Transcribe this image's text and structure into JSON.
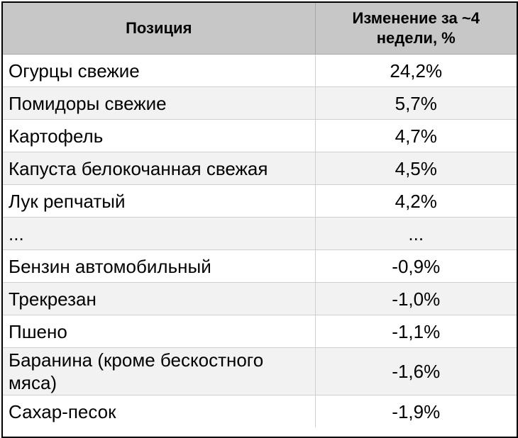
{
  "table": {
    "headers": [
      "Позиция",
      "Изменение за ~4 недели, %"
    ],
    "rows": [
      {
        "name": "Огурцы свежие",
        "value": "24,2%"
      },
      {
        "name": "Помидоры свежие",
        "value": "5,7%"
      },
      {
        "name": "Картофель",
        "value": "4,7%"
      },
      {
        "name": "Капуста белокочанная свежая",
        "value": "4,5%"
      },
      {
        "name": "Лук репчатый",
        "value": "4,2%"
      },
      {
        "name": "...",
        "value": "..."
      },
      {
        "name": "Бензин автомобильный",
        "value": "-0,9%"
      },
      {
        "name": "Трекрезан",
        "value": "-1,0%"
      },
      {
        "name": "Пшено",
        "value": "-1,1%"
      },
      {
        "name": "Баранина (кроме бескостного мяса)",
        "value": "-1,6%"
      },
      {
        "name": "Сахар-песок",
        "value": "-1,9%"
      }
    ]
  },
  "colors": {
    "header_bg": "#c7c7c7",
    "alt_row_bg": "#f2f2f2",
    "border": "#000000"
  }
}
